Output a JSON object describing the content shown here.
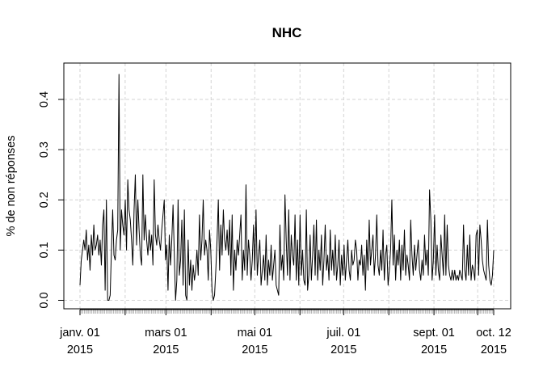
{
  "chart_data": {
    "type": "line",
    "title": "NHC",
    "xlabel": "",
    "ylabel": "% de non réponses",
    "ylim": [
      -0.015,
      0.47
    ],
    "grid": true,
    "grid_style": "dashed light gray",
    "line_color": "#000000",
    "y_ticks": [
      "0.0",
      "0.1",
      "0.2",
      "0.3",
      "0.4"
    ],
    "x_ticks": [
      {
        "date": "2015-01-01",
        "line1": "janv. 01",
        "line2": "2015"
      },
      {
        "date": "2015-03-01",
        "line1": "mars 01",
        "line2": "2015"
      },
      {
        "date": "2015-05-01",
        "line1": "mai 01",
        "line2": "2015"
      },
      {
        "date": "2015-07-01",
        "line1": "juil. 01",
        "line2": "2015"
      },
      {
        "date": "2015-09-01",
        "line1": "sept. 01",
        "line2": "2015"
      },
      {
        "date": "2015-10-12",
        "line1": "oct. 12",
        "line2": "2015"
      }
    ],
    "x_start": "2015-01-01",
    "x_end": "2015-10-12",
    "series": [
      {
        "values": [
          0.03,
          0.08,
          0.1,
          0.12,
          0.1,
          0.14,
          0.08,
          0.11,
          0.06,
          0.13,
          0.09,
          0.15,
          0.1,
          0.11,
          0.13,
          0.09,
          0.12,
          0.07,
          0.15,
          0.18,
          0.02,
          0.2,
          0.0,
          0.0,
          0.01,
          0.1,
          0.18,
          0.09,
          0.08,
          0.12,
          0.14,
          0.45,
          0.1,
          0.18,
          0.15,
          0.13,
          0.2,
          0.1,
          0.24,
          0.18,
          0.16,
          0.12,
          0.07,
          0.18,
          0.25,
          0.11,
          0.2,
          0.14,
          0.09,
          0.07,
          0.25,
          0.12,
          0.17,
          0.12,
          0.09,
          0.14,
          0.1,
          0.13,
          0.07,
          0.24,
          0.13,
          0.11,
          0.15,
          0.12,
          0.1,
          0.14,
          0.17,
          0.2,
          0.08,
          0.11,
          0.02,
          0.13,
          0.07,
          0.12,
          0.19,
          0.09,
          0.0,
          0.04,
          0.2,
          0.05,
          0.08,
          0.16,
          0.03,
          0.18,
          0.01,
          0.0,
          0.12,
          0.03,
          0.08,
          0.02,
          0.07,
          0.04,
          0.06,
          0.1,
          0.05,
          0.17,
          0.08,
          0.12,
          0.2,
          0.09,
          0.12,
          0.1,
          0.04,
          0.14,
          0.1,
          0.02,
          0.0,
          0.01,
          0.06,
          0.12,
          0.2,
          0.06,
          0.15,
          0.09,
          0.18,
          0.12,
          0.1,
          0.14,
          0.09,
          0.16,
          0.05,
          0.17,
          0.02,
          0.1,
          0.06,
          0.12,
          0.09,
          0.13,
          0.17,
          0.04,
          0.1,
          0.06,
          0.23,
          0.05,
          0.12,
          0.09,
          0.04,
          0.08,
          0.15,
          0.06,
          0.18,
          0.05,
          0.09,
          0.12,
          0.03,
          0.06,
          0.09,
          0.04,
          0.13,
          0.03,
          0.08,
          0.05,
          0.11,
          0.04,
          0.07,
          0.1,
          0.03,
          0.02,
          0.01,
          0.15,
          0.06,
          0.09,
          0.04,
          0.21,
          0.12,
          0.05,
          0.18,
          0.04,
          0.13,
          0.09,
          0.07,
          0.17,
          0.04,
          0.12,
          0.03,
          0.17,
          0.05,
          0.1,
          0.04,
          0.03,
          0.18,
          0.02,
          0.05,
          0.13,
          0.04,
          0.09,
          0.15,
          0.05,
          0.16,
          0.04,
          0.1,
          0.06,
          0.13,
          0.03,
          0.08,
          0.15,
          0.06,
          0.09,
          0.04,
          0.14,
          0.06,
          0.1,
          0.05,
          0.13,
          0.04,
          0.07,
          0.12,
          0.03,
          0.09,
          0.05,
          0.11,
          0.04,
          0.08,
          0.12,
          0.06,
          0.04,
          0.1,
          0.07,
          0.08,
          0.12,
          0.1,
          0.04,
          0.08,
          0.07,
          0.11,
          0.05,
          0.09,
          0.02,
          0.12,
          0.06,
          0.16,
          0.07,
          0.1,
          0.13,
          0.05,
          0.09,
          0.17,
          0.07,
          0.05,
          0.1,
          0.06,
          0.14,
          0.04,
          0.09,
          0.11,
          0.03,
          0.06,
          0.1,
          0.2,
          0.07,
          0.13,
          0.04,
          0.1,
          0.07,
          0.12,
          0.04,
          0.11,
          0.06,
          0.14,
          0.05,
          0.09,
          0.07,
          0.04,
          0.16,
          0.09,
          0.05,
          0.11,
          0.06,
          0.09,
          0.12,
          0.06,
          0.04,
          0.08,
          0.05,
          0.13,
          0.07,
          0.1,
          0.05,
          0.22,
          0.16,
          0.04,
          0.08,
          0.17,
          0.05,
          0.11,
          0.06,
          0.04,
          0.13,
          0.09,
          0.05,
          0.17,
          0.05,
          0.15,
          0.07,
          0.05,
          0.04,
          0.06,
          0.04,
          0.06,
          0.04,
          0.05,
          0.04,
          0.06,
          0.05,
          0.04,
          0.15,
          0.06,
          0.04,
          0.11,
          0.05,
          0.13,
          0.04,
          0.07,
          0.06,
          0.04,
          0.13,
          0.14,
          0.05,
          0.15,
          0.12,
          0.08,
          0.06,
          0.05,
          0.04,
          0.16,
          0.07,
          0.04,
          0.03,
          0.05,
          0.1
        ]
      }
    ]
  }
}
